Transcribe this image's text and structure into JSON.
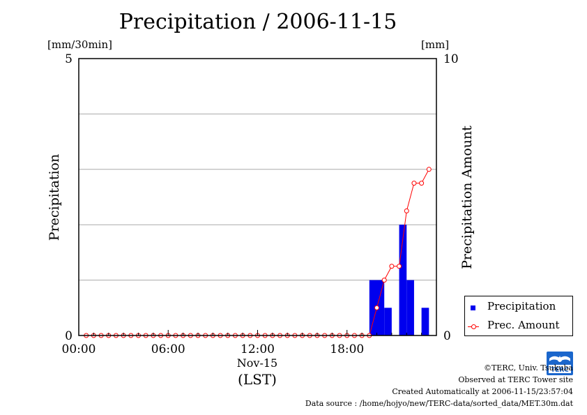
{
  "title": "Precipitation / 2006-11-15",
  "units": {
    "left": "[mm/30min]",
    "right": "[mm]"
  },
  "axis_labels": {
    "left": "Precipitation",
    "right": "Precipitation Amount",
    "x_date": "Nov-15",
    "x_tz": "(LST)"
  },
  "legend": [
    {
      "label": "Precipitation",
      "marker": "blue-square"
    },
    {
      "label": "Prec. Amount",
      "marker": "red-line-circle"
    }
  ],
  "footer": {
    "copyright": "©TERC, Univ. Tsukuba",
    "observed": "Observed at TERC Tower site",
    "created": "Created Automatically at 2006-11-15/23:57:04",
    "source": "Data source : /home/hojyo/new/TERC-data/sorted_data/MET.30m.dat"
  },
  "logo_text": "TERC",
  "colors": {
    "bar": "#0000ee",
    "amount_line": "#ff0000",
    "grid": "#aaaaaa"
  },
  "chart_data": {
    "type": "bar",
    "title": "Precipitation / 2006-11-15",
    "x_unit": "hours (LST)",
    "xlim": [
      0,
      24
    ],
    "x_ticks": [
      "00:00",
      "06:00",
      "12:00",
      "18:00"
    ],
    "x_tick_values": [
      0,
      6,
      12,
      18
    ],
    "y_left": {
      "label": "Precipitation",
      "unit": "[mm/30min]",
      "ylim": [
        0,
        5
      ],
      "ticks": [
        "0",
        "5"
      ]
    },
    "y_right": {
      "label": "Precipitation Amount",
      "unit": "[mm]",
      "ylim": [
        0,
        10
      ],
      "ticks": [
        "0",
        "10"
      ]
    },
    "grid": true,
    "legend_position": "bottom-right outside",
    "series": [
      {
        "name": "Precipitation",
        "kind": "bar",
        "axis": "left",
        "times": [
          0,
          0.5,
          1,
          1.5,
          2,
          2.5,
          3,
          3.5,
          4,
          4.5,
          5,
          5.5,
          6,
          6.5,
          7,
          7.5,
          8,
          8.5,
          9,
          9.5,
          10,
          10.5,
          11,
          11.5,
          12,
          12.5,
          13,
          13.5,
          14,
          14.5,
          15,
          15.5,
          16,
          16.5,
          17,
          17.5,
          18,
          18.5,
          19,
          19.5,
          20,
          20.5,
          21,
          21.5,
          22,
          22.5,
          23
        ],
        "values": [
          0,
          0,
          0,
          0,
          0,
          0,
          0,
          0,
          0,
          0,
          0,
          0,
          0,
          0,
          0,
          0,
          0,
          0,
          0,
          0,
          0,
          0,
          0,
          0,
          0,
          0,
          0,
          0,
          0,
          0,
          0,
          0,
          0,
          0,
          0,
          0,
          0,
          0,
          0,
          1.0,
          1.0,
          0.5,
          0,
          2.0,
          1.0,
          0,
          0.5
        ]
      },
      {
        "name": "Prec. Amount",
        "kind": "line",
        "axis": "right",
        "times": [
          0,
          0.5,
          1,
          1.5,
          2,
          2.5,
          3,
          3.5,
          4,
          4.5,
          5,
          5.5,
          6,
          6.5,
          7,
          7.5,
          8,
          8.5,
          9,
          9.5,
          10,
          10.5,
          11,
          11.5,
          12,
          12.5,
          13,
          13.5,
          14,
          14.5,
          15,
          15.5,
          16,
          16.5,
          17,
          17.5,
          18,
          18.5,
          19,
          19.5,
          20,
          20.5,
          21,
          21.5,
          22,
          22.5,
          23
        ],
        "values": [
          0,
          0,
          0,
          0,
          0,
          0,
          0,
          0,
          0,
          0,
          0,
          0,
          0,
          0,
          0,
          0,
          0,
          0,
          0,
          0,
          0,
          0,
          0,
          0,
          0,
          0,
          0,
          0,
          0,
          0,
          0,
          0,
          0,
          0,
          0,
          0,
          0,
          0,
          0,
          1.0,
          2.0,
          2.5,
          2.5,
          4.5,
          5.5,
          5.5,
          6.0
        ]
      }
    ]
  }
}
